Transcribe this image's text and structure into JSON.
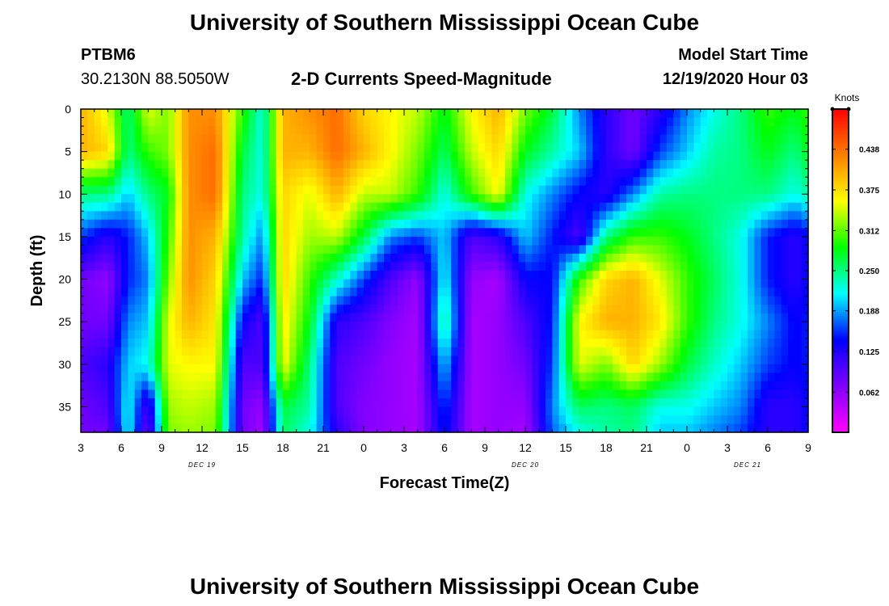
{
  "page": {
    "title_top": "University of Southern Mississippi Ocean Cube",
    "title_bottom": "University of Southern Mississippi Ocean Cube",
    "station": "PTBM6",
    "location": "30.2130N 88.5050W",
    "subtitle": "2-D Currents Speed-Magnitude",
    "model_start_label": "Model Start Time",
    "model_start_value": "12/19/2020 Hour 03"
  },
  "colors": {
    "scale": [
      "#ff00ff",
      "#8000ff",
      "#0000ff",
      "#00ffff",
      "#00ff00",
      "#ffff00",
      "#ff8000",
      "#ff0000"
    ]
  },
  "chart_data": {
    "type": "heatmap",
    "xlabel": "Forecast Time(Z)",
    "ylabel": "Depth (ft)",
    "x_tick_labels": [
      "3",
      "6",
      "9",
      "12",
      "15",
      "18",
      "21",
      "0",
      "3",
      "6",
      "9",
      "12",
      "15",
      "18",
      "21",
      "0",
      "3",
      "6",
      "9"
    ],
    "x_range_hours": [
      0,
      54
    ],
    "date_labels": [
      {
        "label": "DEC 19",
        "hour": 9
      },
      {
        "label": "DEC 20",
        "hour": 33
      },
      {
        "label": "DEC 21",
        "hour": 49.5
      }
    ],
    "y_ticks": [
      0,
      5,
      10,
      15,
      20,
      25,
      30,
      35
    ],
    "ylim": [
      0,
      38
    ],
    "colorbar": {
      "title": "Knots",
      "ticks": [
        "0.438",
        "0.375",
        "0.312",
        "0.250",
        "0.188",
        "0.125",
        "0.062"
      ],
      "tick_values": [
        0.438,
        0.375,
        0.312,
        0.25,
        0.188,
        0.125,
        0.062
      ],
      "range": [
        0,
        0.5
      ]
    },
    "depths": [
      0,
      5,
      10,
      15,
      20,
      25,
      30,
      35,
      38
    ],
    "columns": [
      {
        "hour": 0,
        "values": [
          0.4,
          0.4,
          0.25,
          0.16,
          0.08,
          0.08,
          0.1,
          0.08,
          0.08
        ]
      },
      {
        "hour": 2,
        "values": [
          0.35,
          0.38,
          0.25,
          0.12,
          0.06,
          0.08,
          0.12,
          0.1,
          0.08
        ]
      },
      {
        "hour": 3.5,
        "values": [
          0.25,
          0.25,
          0.2,
          0.15,
          0.15,
          0.18,
          0.2,
          0.22,
          0.22
        ]
      },
      {
        "hour": 5,
        "values": [
          0.35,
          0.3,
          0.25,
          0.2,
          0.18,
          0.2,
          0.22,
          0.1,
          0.08
        ]
      },
      {
        "hour": 6.5,
        "values": [
          0.32,
          0.32,
          0.28,
          0.3,
          0.32,
          0.35,
          0.35,
          0.33,
          0.32
        ]
      },
      {
        "hour": 8,
        "values": [
          0.42,
          0.42,
          0.42,
          0.42,
          0.42,
          0.4,
          0.36,
          0.34,
          0.33
        ]
      },
      {
        "hour": 10,
        "values": [
          0.42,
          0.44,
          0.44,
          0.4,
          0.38,
          0.37,
          0.36,
          0.33,
          0.32
        ]
      },
      {
        "hour": 12,
        "values": [
          0.3,
          0.27,
          0.25,
          0.24,
          0.2,
          0.14,
          0.1,
          0.08,
          0.08
        ]
      },
      {
        "hour": 13.5,
        "values": [
          0.22,
          0.22,
          0.22,
          0.18,
          0.15,
          0.1,
          0.1,
          0.06,
          0.05
        ]
      },
      {
        "hour": 15,
        "values": [
          0.4,
          0.4,
          0.38,
          0.38,
          0.38,
          0.37,
          0.36,
          0.27,
          0.26
        ]
      },
      {
        "hour": 17,
        "values": [
          0.42,
          0.4,
          0.35,
          0.33,
          0.3,
          0.28,
          0.25,
          0.24,
          0.22
        ]
      },
      {
        "hour": 19,
        "values": [
          0.44,
          0.44,
          0.4,
          0.34,
          0.23,
          0.12,
          0.1,
          0.1,
          0.12
        ]
      },
      {
        "hour": 21,
        "values": [
          0.38,
          0.4,
          0.34,
          0.27,
          0.16,
          0.1,
          0.08,
          0.07,
          0.07
        ]
      },
      {
        "hour": 23,
        "values": [
          0.36,
          0.36,
          0.34,
          0.18,
          0.1,
          0.07,
          0.06,
          0.06,
          0.06
        ]
      },
      {
        "hour": 25,
        "values": [
          0.34,
          0.32,
          0.3,
          0.16,
          0.06,
          0.05,
          0.05,
          0.05,
          0.05
        ]
      },
      {
        "hour": 27,
        "values": [
          0.28,
          0.26,
          0.22,
          0.2,
          0.22,
          0.25,
          0.2,
          0.16,
          0.15
        ]
      },
      {
        "hour": 29,
        "values": [
          0.36,
          0.34,
          0.3,
          0.1,
          0.06,
          0.05,
          0.05,
          0.05,
          0.05
        ]
      },
      {
        "hour": 31,
        "values": [
          0.4,
          0.38,
          0.36,
          0.12,
          0.05,
          0.06,
          0.06,
          0.06,
          0.06
        ]
      },
      {
        "hour": 33,
        "values": [
          0.32,
          0.28,
          0.22,
          0.2,
          0.14,
          0.1,
          0.08,
          0.06,
          0.05
        ]
      },
      {
        "hour": 35,
        "values": [
          0.27,
          0.24,
          0.18,
          0.15,
          0.14,
          0.15,
          0.16,
          0.18,
          0.17
        ]
      },
      {
        "hour": 37,
        "values": [
          0.18,
          0.2,
          0.14,
          0.1,
          0.3,
          0.36,
          0.35,
          0.26,
          0.22
        ]
      },
      {
        "hour": 39,
        "values": [
          0.12,
          0.12,
          0.12,
          0.25,
          0.38,
          0.4,
          0.32,
          0.25,
          0.24
        ]
      },
      {
        "hour": 41,
        "values": [
          0.08,
          0.08,
          0.18,
          0.3,
          0.4,
          0.4,
          0.38,
          0.26,
          0.25
        ]
      },
      {
        "hour": 43,
        "values": [
          0.12,
          0.16,
          0.24,
          0.3,
          0.35,
          0.37,
          0.33,
          0.22,
          0.2
        ]
      },
      {
        "hour": 45,
        "values": [
          0.18,
          0.2,
          0.25,
          0.28,
          0.3,
          0.3,
          0.27,
          0.22,
          0.2
        ]
      },
      {
        "hour": 47,
        "values": [
          0.22,
          0.24,
          0.25,
          0.25,
          0.26,
          0.25,
          0.23,
          0.2,
          0.18
        ]
      },
      {
        "hour": 49,
        "values": [
          0.25,
          0.25,
          0.25,
          0.22,
          0.22,
          0.22,
          0.2,
          0.18,
          0.16
        ]
      },
      {
        "hour": 51,
        "values": [
          0.3,
          0.28,
          0.25,
          0.15,
          0.15,
          0.18,
          0.16,
          0.12,
          0.12
        ]
      },
      {
        "hour": 53,
        "values": [
          0.28,
          0.25,
          0.22,
          0.12,
          0.12,
          0.14,
          0.14,
          0.12,
          0.12
        ]
      },
      {
        "hour": 54,
        "values": [
          0.3,
          0.28,
          0.24,
          0.14,
          0.14,
          0.15,
          0.15,
          0.14,
          0.14
        ]
      }
    ]
  }
}
